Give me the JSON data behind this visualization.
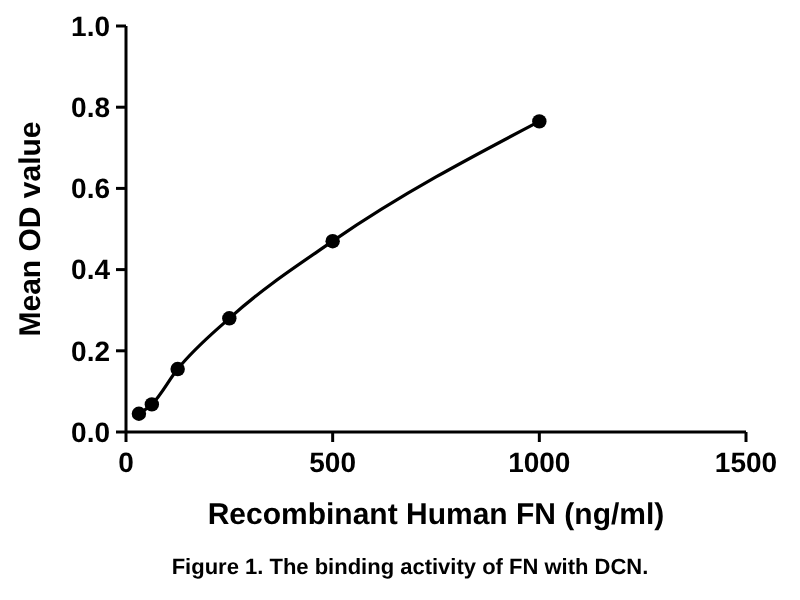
{
  "chart_data": {
    "type": "line",
    "title": "Figure 1. The binding activity of FN with DCN.",
    "xlabel": "Recombinant Human FN (ng/ml)",
    "ylabel": "Mean OD value",
    "x": [
      31.25,
      62.5,
      125,
      250,
      500,
      1000
    ],
    "series": [
      {
        "color": "#000000",
        "values": [
          0.045,
          0.068,
          0.155,
          0.28,
          0.47,
          0.765
        ]
      }
    ],
    "xlim": [
      0,
      1500
    ],
    "xticks": [
      0,
      500,
      1000,
      1500
    ],
    "ylim": [
      0,
      1
    ],
    "yticks": [
      {
        "value": 0,
        "label": "0.0"
      },
      {
        "value": 0.2,
        "label": "0.2"
      },
      {
        "value": 0.4,
        "label": "0.4"
      },
      {
        "value": 0.6,
        "label": "0.6"
      },
      {
        "value": 0.8,
        "label": "0.8"
      },
      {
        "value": 1,
        "label": "1.0"
      }
    ],
    "grid": false,
    "marker": "circle",
    "line_style": "solid"
  }
}
